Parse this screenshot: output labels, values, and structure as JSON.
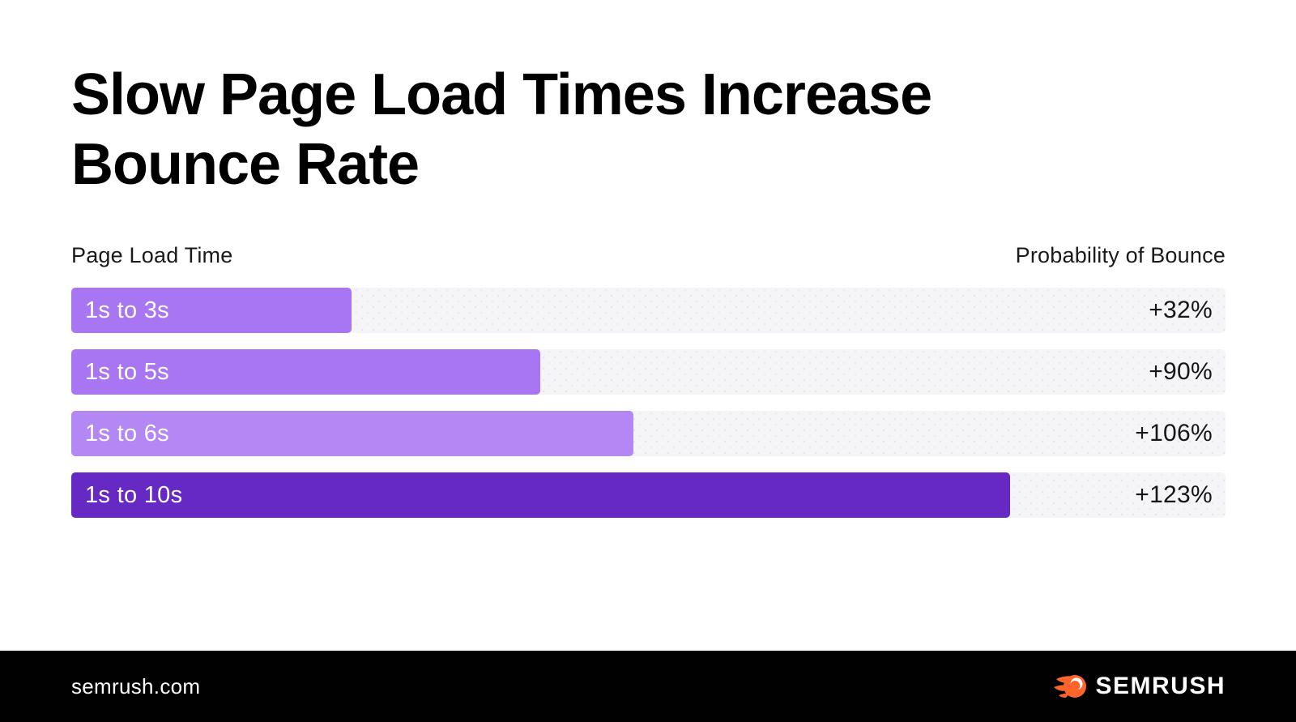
{
  "title": {
    "lines": [
      "Slow Page Load Times Increase",
      "Bounce Rate"
    ]
  },
  "columns": {
    "left": "Page Load Time",
    "right": "Probability of Bounce"
  },
  "chart_data": {
    "type": "bar",
    "orientation": "horizontal",
    "title": "Slow Page Load Times Increase Bounce Rate",
    "category_axis_label": "Page Load Time",
    "value_axis_label": "Probability of Bounce",
    "categories": [
      "1s to 3s",
      "1s to 5s",
      "1s to 6s",
      "1s to 10s"
    ],
    "values": [
      32,
      90,
      106,
      123
    ],
    "value_labels": [
      "+32%",
      "+90%",
      "+106%",
      "+123%"
    ],
    "grid": false,
    "legend_position": "none",
    "track_color": "#F5F4F6",
    "rows": [
      {
        "label": "1s to 3s",
        "value": 32,
        "value_label": "+32%",
        "width_pct": 24.3,
        "color": "#A876F2"
      },
      {
        "label": "1s to 5s",
        "value": 90,
        "value_label": "+90%",
        "width_pct": 40.6,
        "color": "#A876F2"
      },
      {
        "label": "1s to 6s",
        "value": 106,
        "value_label": "+106%",
        "width_pct": 48.7,
        "color": "#B388F4"
      },
      {
        "label": "1s to 10s",
        "value": 123,
        "value_label": "+123%",
        "width_pct": 81.3,
        "color": "#6629C4"
      }
    ]
  },
  "footer": {
    "site": "semrush.com",
    "logo_text": "SEMRUSH",
    "logo_color": "#FF642D",
    "background": "#010101"
  },
  "colors": {
    "bar_light": "#A876F2",
    "bar_lighter": "#B388F4",
    "bar_dark": "#6629C4",
    "track": "#F5F4F6",
    "text": "#171717"
  }
}
